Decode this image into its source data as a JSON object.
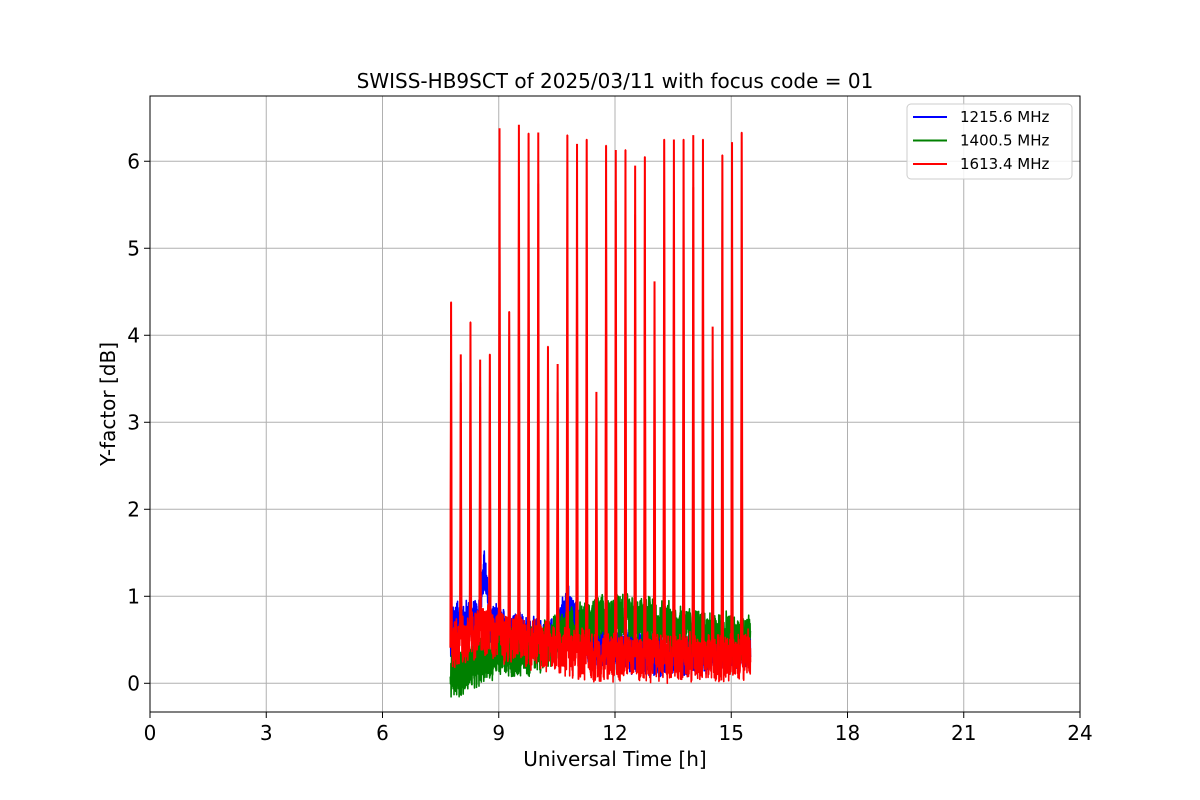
{
  "chart_data": {
    "type": "line",
    "title": "SWISS-HB9SCT of 2025/03/11 with focus code = 01",
    "xlabel": "Universal Time [h]",
    "ylabel": "Y-factor [dB]",
    "xlim": [
      0,
      24
    ],
    "ylim": [
      -0.33,
      6.75
    ],
    "xticks": [
      0,
      3,
      6,
      9,
      12,
      15,
      18,
      21,
      24
    ],
    "yticks": [
      0,
      1,
      2,
      3,
      4,
      5,
      6
    ],
    "grid": true,
    "legend_position": "top-right",
    "series": [
      {
        "name": "1215.6 MHz",
        "color": "#0000ff",
        "x": [
          7.75,
          7.85,
          8.0,
          8.2,
          8.45,
          8.6,
          8.62,
          8.65,
          8.7,
          8.75,
          8.9,
          9.2,
          9.6,
          10.0,
          10.5,
          10.75,
          10.95,
          11.2,
          11.6,
          12.0,
          12.4,
          12.8,
          13.2,
          13.6,
          14.0,
          14.4,
          14.8,
          15.2,
          15.5
        ],
        "y": [
          0.45,
          0.75,
          0.7,
          0.72,
          0.7,
          1.2,
          1.3,
          1.25,
          1.05,
          0.7,
          0.65,
          0.6,
          0.55,
          0.5,
          0.5,
          0.9,
          0.75,
          0.5,
          0.4,
          0.4,
          0.35,
          0.35,
          0.3,
          0.35,
          0.35,
          0.35,
          0.4,
          0.4,
          0.45
        ]
      },
      {
        "name": "1400.5 MHz",
        "color": "#008000",
        "x": [
          7.75,
          7.9,
          8.1,
          8.3,
          8.5,
          8.7,
          9.0,
          9.5,
          10.0,
          10.5,
          11.0,
          11.5,
          12.0,
          12.2,
          12.6,
          13.0,
          13.5,
          14.0,
          14.5,
          15.0,
          15.5
        ],
        "y": [
          0.15,
          0.1,
          0.15,
          0.2,
          0.25,
          0.3,
          0.35,
          0.35,
          0.4,
          0.55,
          0.65,
          0.7,
          0.75,
          0.8,
          0.75,
          0.7,
          0.65,
          0.6,
          0.55,
          0.5,
          0.5
        ]
      },
      {
        "name": "1613.4 MHz",
        "color": "#ff0000",
        "x": [
          7.75,
          8.0,
          8.5,
          8.75,
          9.0,
          9.5,
          10.0,
          10.5,
          11.0,
          11.5,
          12.0,
          12.5,
          13.0,
          13.5,
          14.0,
          14.5,
          15.0,
          15.5
        ],
        "y": [
          0.4,
          0.5,
          0.6,
          0.6,
          0.55,
          0.5,
          0.45,
          0.4,
          0.35,
          0.3,
          0.3,
          0.3,
          0.3,
          0.3,
          0.3,
          0.3,
          0.3,
          0.35
        ],
        "peaks": [
          [
            7.77,
            4.38
          ],
          [
            8.02,
            3.78
          ],
          [
            8.27,
            4.15
          ],
          [
            8.52,
            3.72
          ],
          [
            8.77,
            3.78
          ],
          [
            9.02,
            6.38
          ],
          [
            9.27,
            4.27
          ],
          [
            9.52,
            6.42
          ],
          [
            9.77,
            6.32
          ],
          [
            10.02,
            6.33
          ],
          [
            10.27,
            3.87
          ],
          [
            10.52,
            3.67
          ],
          [
            10.77,
            6.3
          ],
          [
            11.02,
            6.2
          ],
          [
            11.27,
            6.25
          ],
          [
            11.52,
            3.35
          ],
          [
            11.77,
            6.18
          ],
          [
            12.02,
            6.13
          ],
          [
            12.27,
            6.13
          ],
          [
            12.52,
            5.95
          ],
          [
            12.77,
            6.05
          ],
          [
            13.02,
            4.62
          ],
          [
            13.27,
            6.25
          ],
          [
            13.52,
            6.25
          ],
          [
            13.77,
            6.25
          ],
          [
            14.02,
            6.3
          ],
          [
            14.27,
            6.25
          ],
          [
            14.52,
            4.1
          ],
          [
            14.77,
            6.07
          ],
          [
            15.02,
            6.22
          ],
          [
            15.27,
            6.33
          ]
        ]
      }
    ]
  }
}
